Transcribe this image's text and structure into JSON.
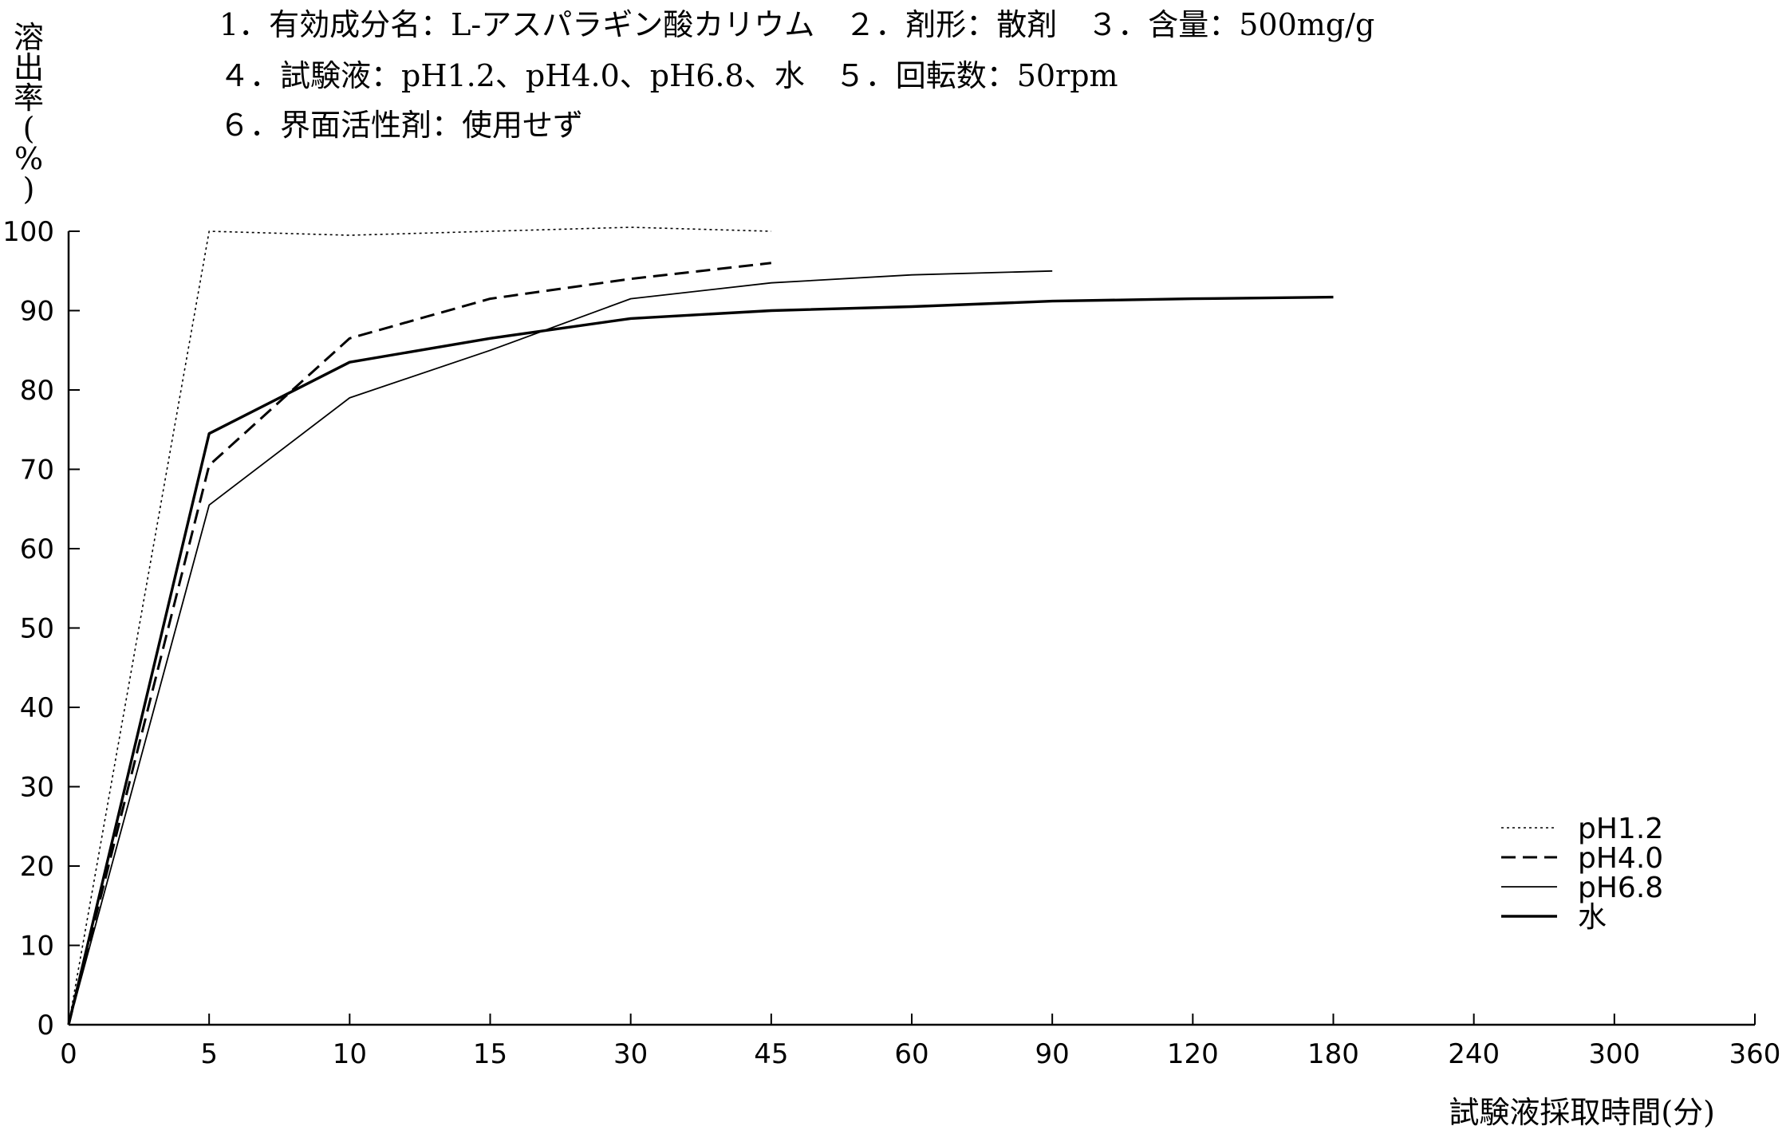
{
  "conditions": {
    "line1": "1．有効成分名：L-アスパラギン酸カリウム　２．剤形：散剤　３．含量：500mg/g",
    "line2": "４．試験液：pH1.2、pH4.0、pH6.8、水　５．回転数：50rpm",
    "line3": "６．界面活性剤：使用せず"
  },
  "chart_data": {
    "type": "line",
    "xlabel": "試験液採取時間(分)",
    "ylabel": "溶出率(%)",
    "ylabel_chars": [
      "溶",
      "出",
      "率",
      "(",
      "%",
      ")"
    ],
    "categories": [
      "0",
      "5",
      "10",
      "15",
      "30",
      "45",
      "60",
      "90",
      "120",
      "180",
      "240",
      "300",
      "360"
    ],
    "ylim": [
      0,
      100
    ],
    "yticks": [
      0,
      10,
      20,
      30,
      40,
      50,
      60,
      70,
      80,
      90,
      100
    ],
    "ytick_labels": [
      "0",
      "10",
      "20",
      "30",
      "40",
      "50",
      "60",
      "70",
      "80",
      "90",
      "100"
    ],
    "grid": false,
    "legend_position": "bottom-right",
    "series": [
      {
        "name": "pH1.2",
        "style": "dotted",
        "x": [
          0,
          5,
          10,
          15,
          30,
          45
        ],
        "values": [
          0,
          100,
          99.5,
          100,
          100.5,
          100
        ]
      },
      {
        "name": "pH4.0",
        "style": "dashed",
        "x": [
          0,
          5,
          10,
          15,
          30,
          45
        ],
        "values": [
          0,
          70.5,
          86.5,
          91.5,
          94,
          96
        ]
      },
      {
        "name": "pH6.8",
        "style": "thin",
        "x": [
          0,
          5,
          10,
          15,
          30,
          45,
          60,
          90
        ],
        "values": [
          0,
          65.5,
          79,
          85,
          91.5,
          93.5,
          94.5,
          95
        ]
      },
      {
        "name": "水",
        "style": "thick",
        "x": [
          0,
          5,
          10,
          15,
          30,
          45,
          60,
          90,
          120,
          180
        ],
        "values": [
          0,
          74.5,
          83.5,
          86.5,
          89,
          90,
          90.5,
          91.2,
          91.5,
          91.7
        ]
      }
    ]
  }
}
